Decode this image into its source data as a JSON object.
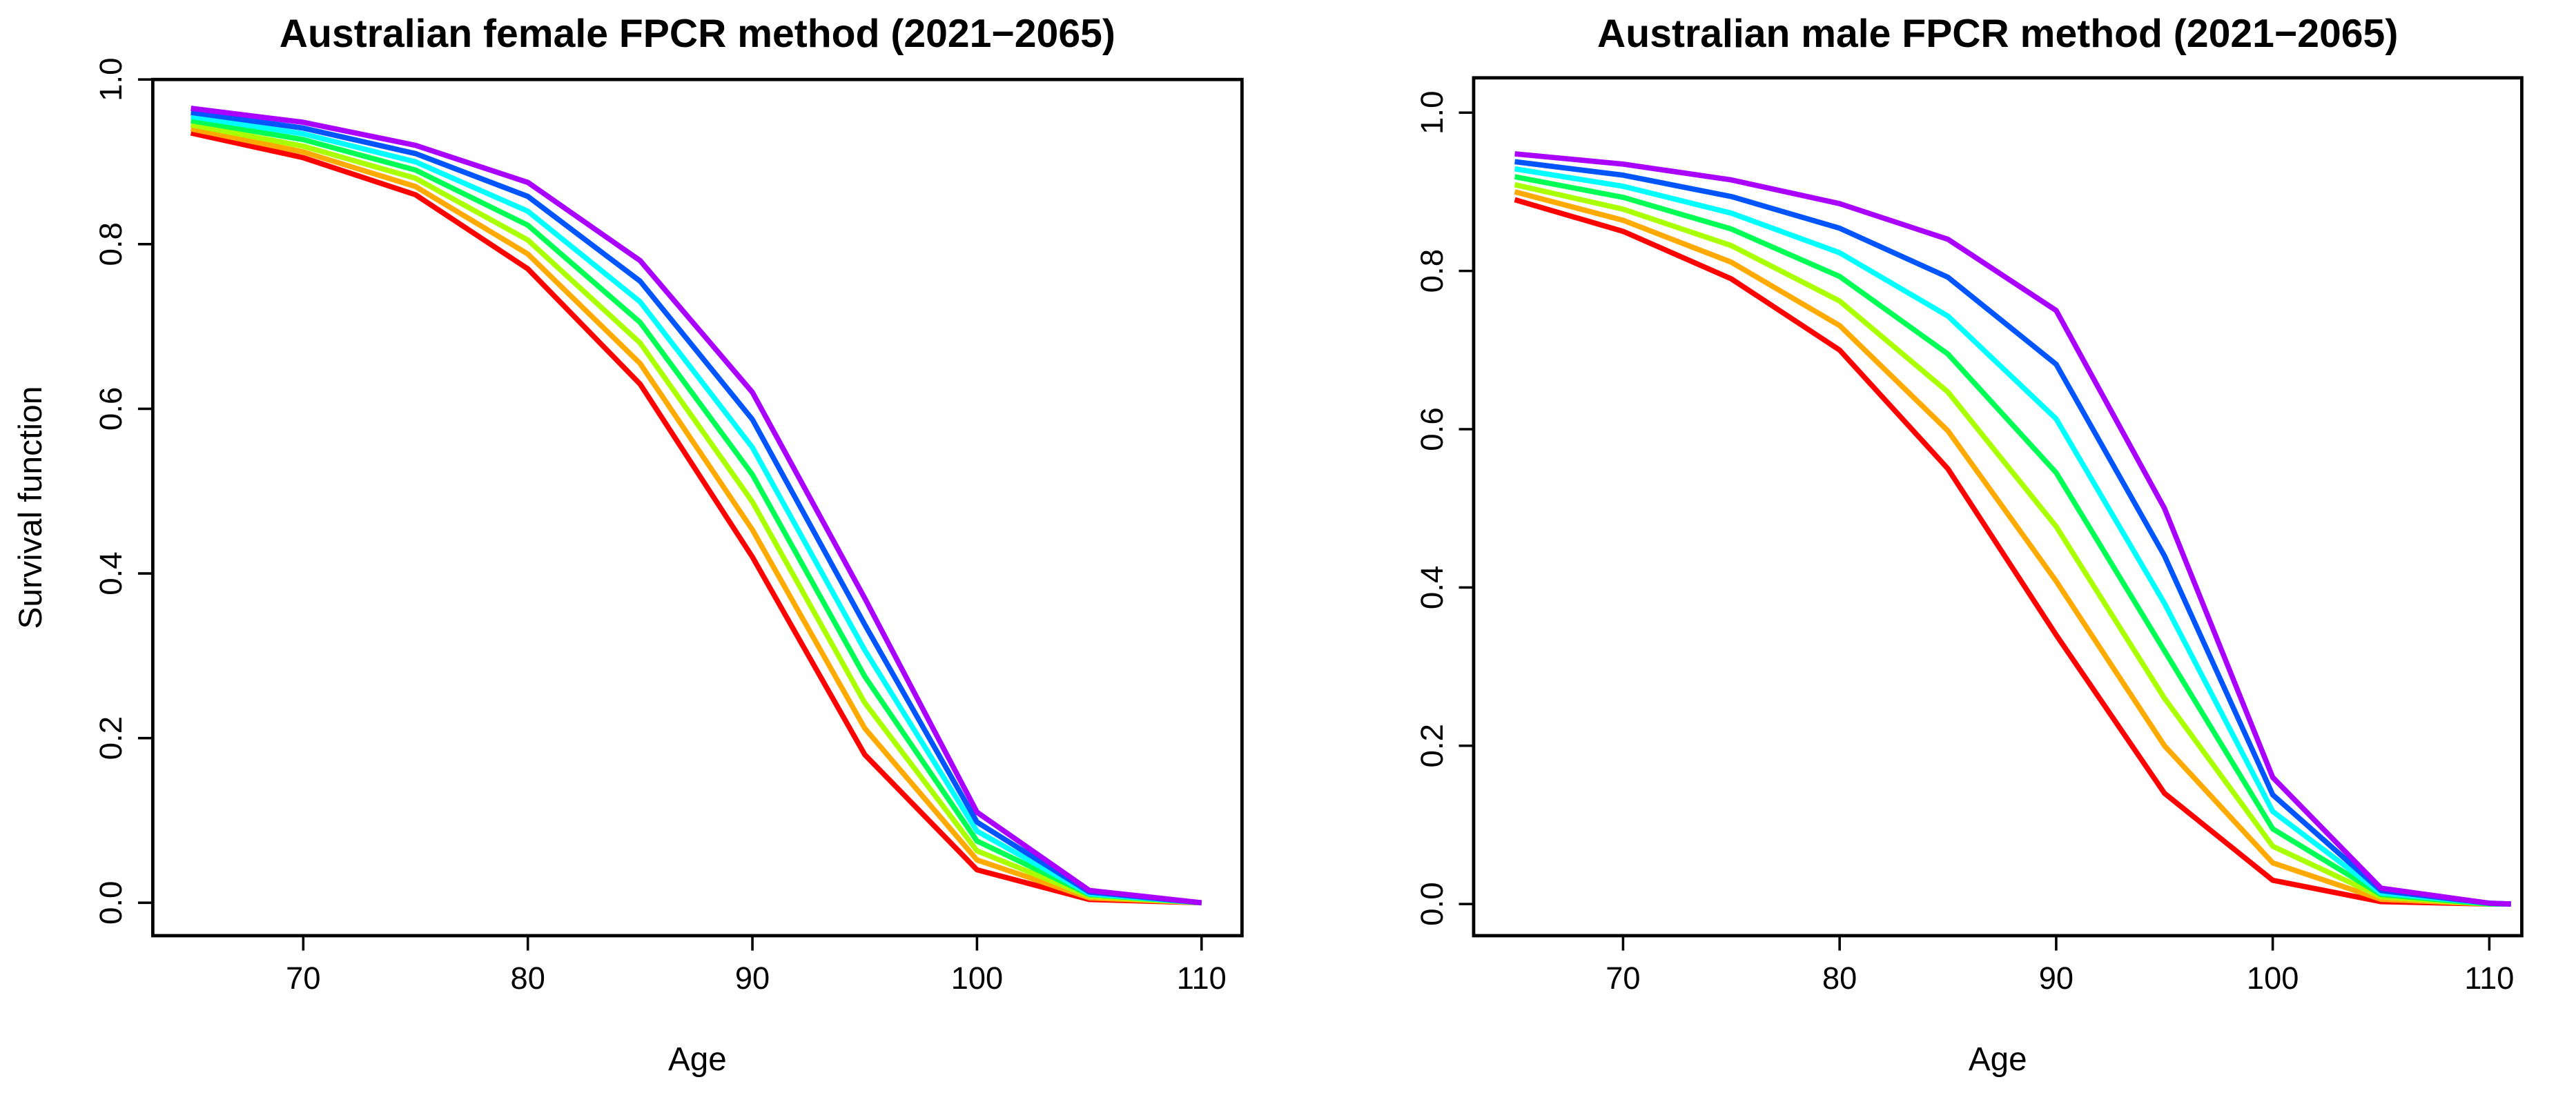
{
  "chart_data": [
    {
      "type": "line",
      "title": "Australian female FPCR method (2021−2065)",
      "x_label": "Age",
      "y_label": "Survival function",
      "x": [
        65,
        70,
        75,
        80,
        85,
        90,
        95,
        100,
        105,
        110
      ],
      "xlim": [
        63.3,
        111.8
      ],
      "ylim": [
        -0.04,
        1.0
      ],
      "xticks": [
        70,
        80,
        90,
        100,
        110
      ],
      "yticks": [
        {
          "value": 0,
          "label": "0.0"
        },
        0.2,
        0.4,
        0.6,
        0.8,
        {
          "value": 1,
          "label": "1.0"
        }
      ],
      "series": [
        {
          "color": "#FF0000",
          "values": [
            0.935,
            0.905,
            0.86,
            0.77,
            0.63,
            0.42,
            0.18,
            0.04,
            0.004,
            0
          ]
        },
        {
          "color": "#FFAA00",
          "values": [
            0.94,
            0.912,
            0.87,
            0.788,
            0.655,
            0.453,
            0.212,
            0.052,
            0.006,
            0
          ]
        },
        {
          "color": "#AAFF00",
          "values": [
            0.945,
            0.919,
            0.88,
            0.805,
            0.68,
            0.487,
            0.243,
            0.063,
            0.008,
            0
          ]
        },
        {
          "color": "#00FF55",
          "values": [
            0.95,
            0.927,
            0.89,
            0.823,
            0.705,
            0.52,
            0.275,
            0.075,
            0.01,
            0
          ]
        },
        {
          "color": "#00FFFF",
          "values": [
            0.955,
            0.934,
            0.9,
            0.84,
            0.73,
            0.553,
            0.307,
            0.087,
            0.011,
            0
          ]
        },
        {
          "color": "#0055FF",
          "values": [
            0.96,
            0.941,
            0.91,
            0.858,
            0.755,
            0.587,
            0.338,
            0.098,
            0.013,
            0
          ]
        },
        {
          "color": "#AA00FF",
          "values": [
            0.965,
            0.948,
            0.92,
            0.875,
            0.78,
            0.62,
            0.37,
            0.11,
            0.015,
            0
          ]
        }
      ]
    },
    {
      "type": "line",
      "title": "Australian male FPCR method (2021−2065)",
      "x_label": "Age",
      "x": [
        65,
        70,
        75,
        80,
        85,
        90,
        95,
        100,
        105,
        110,
        111
      ],
      "xlim": [
        63.1,
        111.5
      ],
      "ylim": [
        -0.04,
        1.044
      ],
      "xticks": [
        70,
        80,
        90,
        100,
        110
      ],
      "yticks": [
        {
          "value": 0,
          "label": "0.0"
        },
        0.2,
        0.4,
        0.6,
        0.8,
        {
          "value": 1,
          "label": "1.0"
        }
      ],
      "series": [
        {
          "color": "#FF0000",
          "values": [
            0.89,
            0.85,
            0.79,
            0.7,
            0.55,
            0.34,
            0.14,
            0.03,
            0.003,
            0,
            0
          ]
        },
        {
          "color": "#FFAA00",
          "values": [
            0.9,
            0.864,
            0.811,
            0.731,
            0.598,
            0.408,
            0.2,
            0.052,
            0.006,
            0,
            0
          ]
        },
        {
          "color": "#AAFF00",
          "values": [
            0.909,
            0.878,
            0.832,
            0.762,
            0.647,
            0.477,
            0.26,
            0.073,
            0.009,
            0,
            0
          ]
        },
        {
          "color": "#00FF55",
          "values": [
            0.919,
            0.893,
            0.853,
            0.793,
            0.695,
            0.545,
            0.32,
            0.095,
            0.012,
            0,
            0
          ]
        },
        {
          "color": "#00FFFF",
          "values": [
            0.929,
            0.907,
            0.873,
            0.823,
            0.743,
            0.613,
            0.38,
            0.117,
            0.014,
            0.001,
            0
          ]
        },
        {
          "color": "#0055FF",
          "values": [
            0.938,
            0.921,
            0.894,
            0.854,
            0.792,
            0.682,
            0.44,
            0.138,
            0.017,
            0.001,
            0
          ]
        },
        {
          "color": "#AA00FF",
          "values": [
            0.948,
            0.935,
            0.915,
            0.885,
            0.84,
            0.75,
            0.5,
            0.16,
            0.02,
            0.001,
            0
          ]
        }
      ]
    }
  ]
}
